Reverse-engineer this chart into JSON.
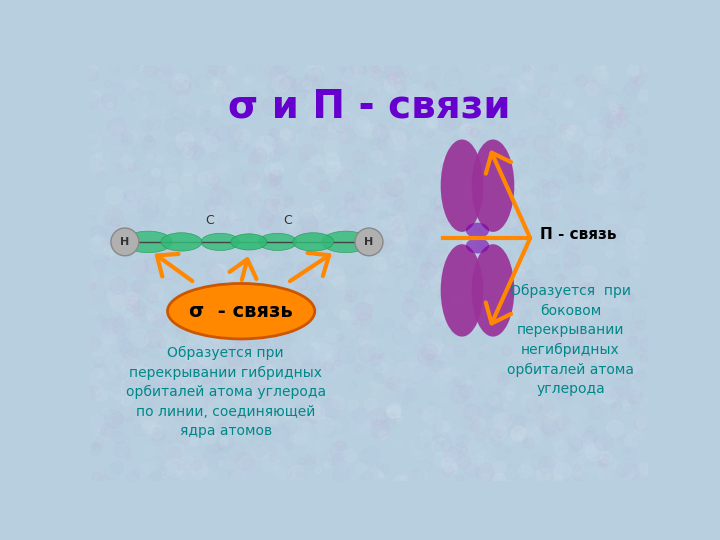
{
  "title": "σ и Π - связи",
  "title_color": "#6600cc",
  "bg_color": "#b8cfe0",
  "bg_noise_color": "#c8d8e8",
  "sigma_bond_label": "σ  - связь",
  "pi_bond_label": "Π - связь",
  "left_text": "Образуется при\nперекрывании гибридных\nорбиталей атома углерода\nпо линии, соединяющей\nядра атомов",
  "right_text": "Образуется  при\nбоковом\nперекрывании\nнегибридных\nорбиталей атома\nуглерода",
  "text_color": "#008888",
  "arrow_color": "#ff8800",
  "green_orbital_color": "#33bb77",
  "green_orbital_dark": "#229955",
  "purple_orbital_color": "#993399",
  "purple_orbital_dark": "#7700aa",
  "orange_ellipse_color": "#ff8800",
  "orange_ellipse_border": "#cc5500",
  "atom_color": "#b0b0b0",
  "atom_border": "#888888"
}
